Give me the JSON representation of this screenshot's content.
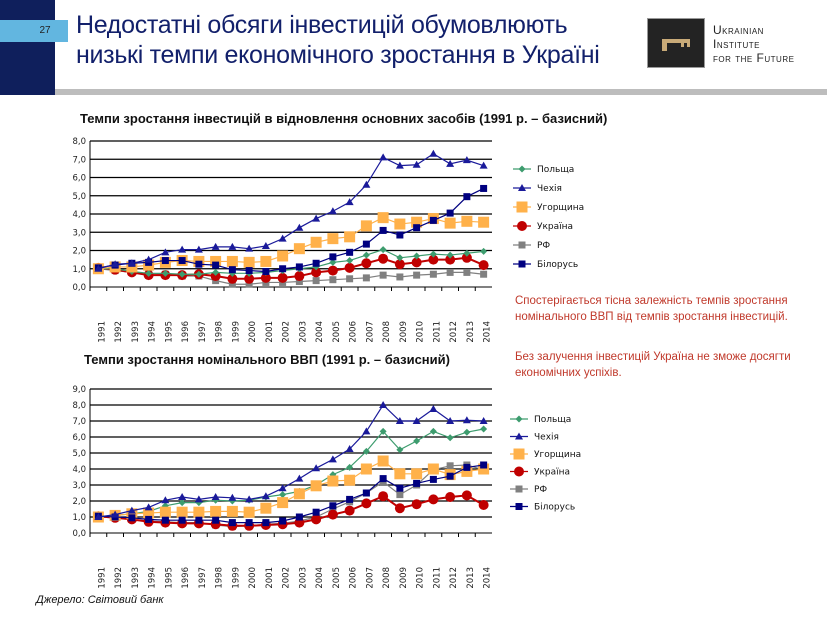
{
  "header": {
    "page_number": "27",
    "title": "Недостатні обсяги інвестицій обумовлюють низькі темпи економічного зростання в Україні",
    "logo_text": [
      "Ukrainian",
      "Institute",
      "for the Future"
    ]
  },
  "notes": [
    "Спостерігається тісна залежність темпів зростання номінального ВВП від темпів зростання інвестицій.",
    "Без залучення інвестицій Україна не зможе досягти економічних успіхів."
  ],
  "source": "Джерело: Світовий банк",
  "colors": {
    "Польща": "#3d9c6e",
    "Чехія": "#1a1a9a",
    "Угорщина": "#ffb14a",
    "Україна": "#c00000",
    "РФ": "#808080",
    "Білорусь": "#000080"
  },
  "chart_data": [
    {
      "type": "line",
      "title": "Темпи зростання інвестицій в відновлення основних засобів (1991 р. – базисний)",
      "ylim": [
        0,
        8
      ],
      "yticks": [
        "0,0",
        "1,0",
        "2,0",
        "3,0",
        "4,0",
        "5,0",
        "6,0",
        "7,0",
        "8,0"
      ],
      "grid": true,
      "legend": "right",
      "categories": [
        "1991",
        "1992",
        "1993",
        "1994",
        "1995",
        "1996",
        "1997",
        "1998",
        "1999",
        "2000",
        "2001",
        "2002",
        "2003",
        "2004",
        "2005",
        "2006",
        "2007",
        "2008",
        "2009",
        "2010",
        "2011",
        "2012",
        "2013",
        "2014"
      ],
      "series": [
        {
          "name": "Польща",
          "marker": "diamond",
          "values": [
            1.0,
            1.0,
            0.85,
            0.75,
            0.75,
            0.7,
            0.7,
            0.8,
            0.75,
            0.75,
            0.8,
            0.9,
            1.0,
            1.1,
            1.35,
            1.45,
            1.75,
            2.05,
            1.6,
            1.7,
            1.8,
            1.75,
            1.85,
            1.95
          ]
        },
        {
          "name": "Чехія",
          "marker": "triangle",
          "values": [
            1.0,
            1.25,
            1.3,
            1.5,
            1.9,
            2.05,
            2.05,
            2.2,
            2.2,
            2.1,
            2.25,
            2.65,
            3.25,
            3.75,
            4.15,
            4.65,
            5.6,
            7.1,
            6.65,
            6.7,
            7.3,
            6.75,
            6.95,
            6.65
          ]
        },
        {
          "name": "Угорщина",
          "marker": "square-large",
          "values": [
            1.0,
            1.1,
            1.1,
            1.2,
            1.35,
            1.45,
            1.4,
            1.4,
            1.4,
            1.35,
            1.4,
            1.7,
            2.1,
            2.45,
            2.65,
            2.75,
            3.35,
            3.8,
            3.45,
            3.55,
            3.75,
            3.5,
            3.6,
            3.55
          ]
        },
        {
          "name": "Україна",
          "marker": "circle",
          "values": [
            1.05,
            0.95,
            0.8,
            0.65,
            0.65,
            0.65,
            0.7,
            0.6,
            0.45,
            0.45,
            0.5,
            0.5,
            0.6,
            0.8,
            0.9,
            1.05,
            1.3,
            1.55,
            1.25,
            1.35,
            1.5,
            1.5,
            1.6,
            1.2
          ]
        },
        {
          "name": "РФ",
          "marker": "square",
          "values": [
            1.0,
            0.9,
            0.8,
            0.75,
            0.7,
            0.6,
            0.6,
            0.35,
            0.15,
            0.15,
            0.25,
            0.25,
            0.3,
            0.35,
            0.4,
            0.45,
            0.5,
            0.65,
            0.55,
            0.65,
            0.7,
            0.8,
            0.8,
            0.7
          ]
        },
        {
          "name": "Білорусь",
          "marker": "square",
          "values": [
            1.05,
            1.2,
            1.3,
            1.35,
            1.45,
            1.45,
            1.25,
            1.2,
            0.95,
            0.9,
            0.85,
            1.0,
            1.1,
            1.3,
            1.65,
            1.9,
            2.35,
            3.1,
            2.85,
            3.25,
            3.65,
            4.05,
            4.95,
            5.4
          ]
        }
      ]
    },
    {
      "type": "line",
      "title": "Темпи зростання номінального ВВП (1991 р. – базисний)",
      "ylim": [
        0,
        9
      ],
      "yticks": [
        "0,0",
        "1,0",
        "2,0",
        "3,0",
        "4,0",
        "5,0",
        "6,0",
        "7,0",
        "8,0",
        "9,0"
      ],
      "grid": true,
      "legend": "right",
      "categories": [
        "1991",
        "1992",
        "1993",
        "1994",
        "1995",
        "1996",
        "1997",
        "1998",
        "1999",
        "2000",
        "2001",
        "2002",
        "2003",
        "2004",
        "2005",
        "2006",
        "2007",
        "2008",
        "2009",
        "2010",
        "2011",
        "2012",
        "2013",
        "2014"
      ],
      "series": [
        {
          "name": "Польща",
          "marker": "diamond",
          "values": [
            1.0,
            1.1,
            1.2,
            1.35,
            1.7,
            1.9,
            1.9,
            2.05,
            2.0,
            2.05,
            2.25,
            2.4,
            2.6,
            3.0,
            3.65,
            4.1,
            5.1,
            6.35,
            5.2,
            5.75,
            6.35,
            5.95,
            6.3,
            6.5
          ]
        },
        {
          "name": "Чехія",
          "marker": "triangle",
          "values": [
            1.0,
            1.15,
            1.4,
            1.6,
            2.05,
            2.25,
            2.1,
            2.25,
            2.2,
            2.1,
            2.3,
            2.8,
            3.4,
            4.05,
            4.6,
            5.25,
            6.35,
            8.0,
            7.0,
            7.0,
            7.75,
            7.0,
            7.05,
            7.0
          ]
        },
        {
          "name": "Угорщина",
          "marker": "square-large",
          "values": [
            1.0,
            1.1,
            1.2,
            1.25,
            1.3,
            1.3,
            1.3,
            1.35,
            1.35,
            1.3,
            1.55,
            1.9,
            2.45,
            2.95,
            3.25,
            3.3,
            4.0,
            4.5,
            3.7,
            3.7,
            4.0,
            3.65,
            3.85,
            4.0
          ]
        },
        {
          "name": "Україна",
          "marker": "circle",
          "values": [
            1.05,
            0.95,
            0.85,
            0.7,
            0.65,
            0.6,
            0.6,
            0.55,
            0.45,
            0.45,
            0.5,
            0.55,
            0.65,
            0.85,
            1.15,
            1.4,
            1.85,
            2.3,
            1.55,
            1.8,
            2.1,
            2.25,
            2.35,
            1.75
          ]
        },
        {
          "name": "РФ",
          "marker": "square",
          "values": [
            1.0,
            0.95,
            0.85,
            0.75,
            0.7,
            0.65,
            0.65,
            0.5,
            0.4,
            0.45,
            0.55,
            0.6,
            0.75,
            1.0,
            1.5,
            1.95,
            2.5,
            3.2,
            2.4,
            3.0,
            3.95,
            4.2,
            4.25,
            3.95
          ]
        },
        {
          "name": "Білорусь",
          "marker": "square",
          "values": [
            1.05,
            1.0,
            0.95,
            0.85,
            0.8,
            0.8,
            0.8,
            0.8,
            0.65,
            0.65,
            0.65,
            0.75,
            1.0,
            1.3,
            1.7,
            2.1,
            2.5,
            3.4,
            2.8,
            3.1,
            3.35,
            3.55,
            4.1,
            4.25
          ]
        }
      ]
    }
  ]
}
